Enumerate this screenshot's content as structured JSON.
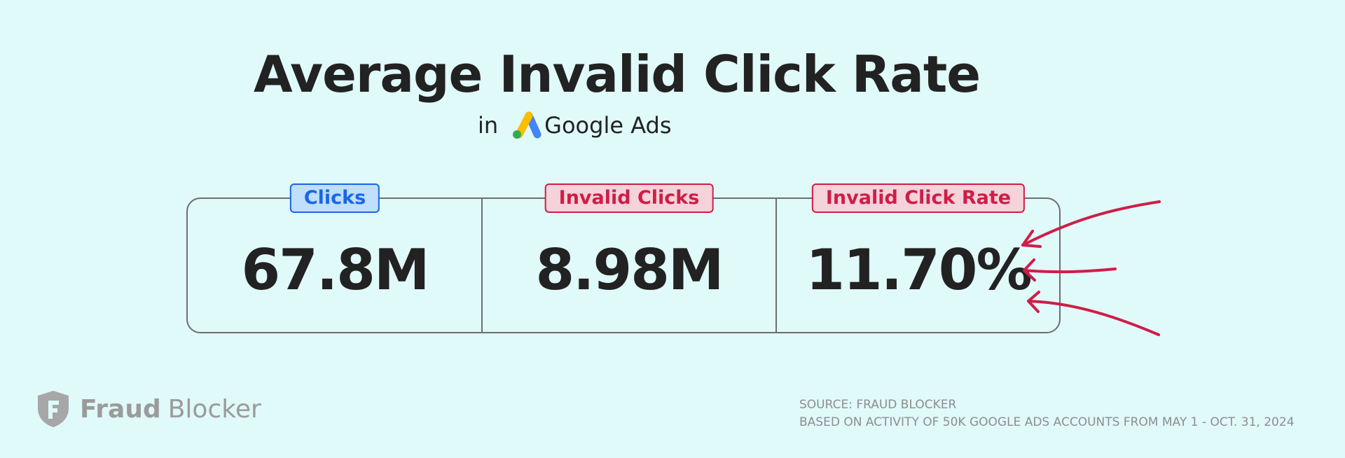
{
  "title": "Average Invalid Click Rate",
  "subtitle": {
    "prefix": "in",
    "product": "Google Ads"
  },
  "stats": [
    {
      "label": "Clicks",
      "value": "67.8M",
      "color": "#1a66e8"
    },
    {
      "label": "Invalid Clicks",
      "value": "8.98M",
      "color": "#cf1d47"
    },
    {
      "label": "Invalid Click Rate",
      "value": "11.70%",
      "color": "#cf1d47"
    }
  ],
  "brand": {
    "strong": "Fraud",
    "light": "Blocker"
  },
  "source": {
    "line1": "SOURCE: FRAUD BLOCKER",
    "line2": "BASED ON ACTIVITY OF 50K GOOGLE ADS ACCOUNTS FROM MAY 1 - OCT. 31, 2024"
  },
  "colors": {
    "background": "#e0f9f9",
    "accent_blue": "#1a66e8",
    "accent_red": "#cf1d47",
    "text": "#222222",
    "muted": "#9b9b9b"
  },
  "icons": [
    "google-ads-logo-icon",
    "fraud-blocker-shield-icon",
    "arrow-icon"
  ]
}
